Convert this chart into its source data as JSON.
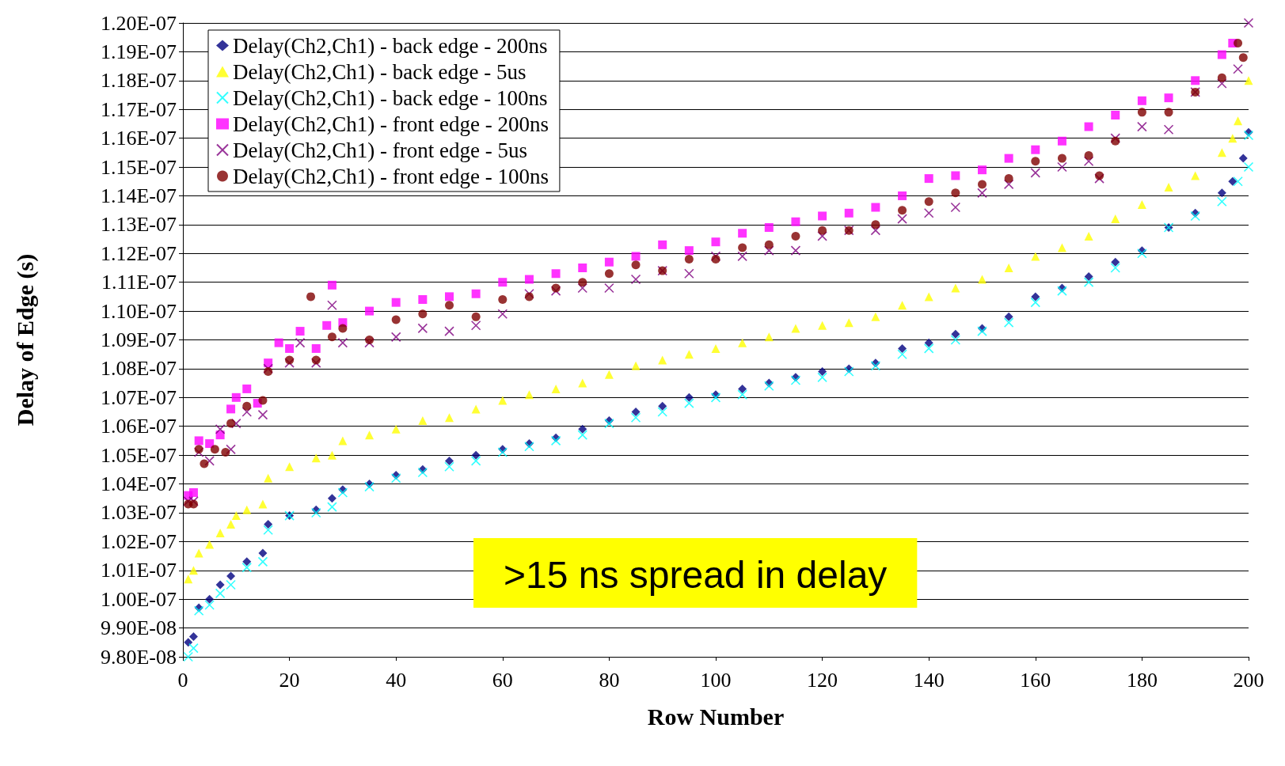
{
  "chart_data": {
    "type": "scatter",
    "xlabel": "Row Number",
    "ylabel": "Delay of Edge (s)",
    "xlim": [
      0,
      200
    ],
    "xticks": [
      0,
      20,
      40,
      60,
      80,
      100,
      120,
      140,
      160,
      180,
      200
    ],
    "ylim": [
      9.8e-08,
      1.2e-07
    ],
    "yticks": [
      {
        "value": 9.8e-08,
        "label": "9.80E-08"
      },
      {
        "value": 9.9e-08,
        "label": "9.90E-08"
      },
      {
        "value": 1e-07,
        "label": "1.00E-07"
      },
      {
        "value": 1.01e-07,
        "label": "1.01E-07"
      },
      {
        "value": 1.02e-07,
        "label": "1.02E-07"
      },
      {
        "value": 1.03e-07,
        "label": "1.03E-07"
      },
      {
        "value": 1.04e-07,
        "label": "1.04E-07"
      },
      {
        "value": 1.05e-07,
        "label": "1.05E-07"
      },
      {
        "value": 1.06e-07,
        "label": "1.06E-07"
      },
      {
        "value": 1.07e-07,
        "label": "1.07E-07"
      },
      {
        "value": 1.08e-07,
        "label": "1.08E-07"
      },
      {
        "value": 1.09e-07,
        "label": "1.09E-07"
      },
      {
        "value": 1.1e-07,
        "label": "1.10E-07"
      },
      {
        "value": 1.11e-07,
        "label": "1.11E-07"
      },
      {
        "value": 1.12e-07,
        "label": "1.12E-07"
      },
      {
        "value": 1.13e-07,
        "label": "1.13E-07"
      },
      {
        "value": 1.14e-07,
        "label": "1.14E-07"
      },
      {
        "value": 1.15e-07,
        "label": "1.15E-07"
      },
      {
        "value": 1.16e-07,
        "label": "1.16E-07"
      },
      {
        "value": 1.17e-07,
        "label": "1.17E-07"
      },
      {
        "value": 1.18e-07,
        "label": "1.18E-07"
      },
      {
        "value": 1.19e-07,
        "label": "1.19E-07"
      },
      {
        "value": 1.2e-07,
        "label": "1.20E-07"
      }
    ],
    "grid": "y",
    "legend": "top left",
    "annotations": [
      ">15 ns spread in delay"
    ],
    "series": [
      {
        "name": "Delay(Ch2,Ch1) - back edge - 200ns",
        "color": "#000080",
        "marker": "diamond",
        "x": [
          1,
          2,
          3,
          5,
          7,
          9,
          12,
          15,
          16,
          20,
          25,
          28,
          30,
          35,
          40,
          45,
          50,
          55,
          60,
          65,
          70,
          75,
          80,
          85,
          90,
          95,
          100,
          105,
          110,
          115,
          120,
          125,
          130,
          135,
          140,
          145,
          150,
          155,
          160,
          165,
          170,
          175,
          180,
          185,
          190,
          195,
          197,
          199,
          200
        ],
        "values": [
          9.85e-08,
          9.87e-08,
          9.97e-08,
          1e-07,
          1.005e-07,
          1.008e-07,
          1.013e-07,
          1.016e-07,
          1.026e-07,
          1.029e-07,
          1.031e-07,
          1.035e-07,
          1.038e-07,
          1.04e-07,
          1.043e-07,
          1.045e-07,
          1.048e-07,
          1.05e-07,
          1.052e-07,
          1.054e-07,
          1.056e-07,
          1.059e-07,
          1.062e-07,
          1.065e-07,
          1.067e-07,
          1.07e-07,
          1.071e-07,
          1.073e-07,
          1.075e-07,
          1.077e-07,
          1.079e-07,
          1.08e-07,
          1.082e-07,
          1.087e-07,
          1.089e-07,
          1.092e-07,
          1.094e-07,
          1.098e-07,
          1.105e-07,
          1.108e-07,
          1.112e-07,
          1.117e-07,
          1.121e-07,
          1.129e-07,
          1.134e-07,
          1.141e-07,
          1.145e-07,
          1.153e-07,
          1.162e-07
        ]
      },
      {
        "name": "Delay(Ch2,Ch1) - back edge - 5us",
        "color": "#ffff00",
        "marker": "triangle",
        "x": [
          1,
          2,
          3,
          5,
          7,
          9,
          10,
          12,
          15,
          16,
          20,
          25,
          28,
          30,
          35,
          40,
          45,
          50,
          55,
          60,
          65,
          70,
          75,
          80,
          85,
          90,
          95,
          100,
          105,
          110,
          115,
          120,
          125,
          130,
          135,
          140,
          145,
          150,
          155,
          160,
          165,
          170,
          175,
          180,
          185,
          190,
          195,
          197,
          198,
          200
        ],
        "values": [
          1.007e-07,
          1.01e-07,
          1.016e-07,
          1.019e-07,
          1.023e-07,
          1.026e-07,
          1.029e-07,
          1.031e-07,
          1.033e-07,
          1.042e-07,
          1.046e-07,
          1.049e-07,
          1.05e-07,
          1.055e-07,
          1.057e-07,
          1.059e-07,
          1.062e-07,
          1.063e-07,
          1.066e-07,
          1.069e-07,
          1.071e-07,
          1.073e-07,
          1.075e-07,
          1.078e-07,
          1.081e-07,
          1.083e-07,
          1.085e-07,
          1.087e-07,
          1.089e-07,
          1.091e-07,
          1.094e-07,
          1.095e-07,
          1.096e-07,
          1.098e-07,
          1.102e-07,
          1.105e-07,
          1.108e-07,
          1.111e-07,
          1.115e-07,
          1.119e-07,
          1.122e-07,
          1.126e-07,
          1.132e-07,
          1.137e-07,
          1.143e-07,
          1.147e-07,
          1.155e-07,
          1.16e-07,
          1.166e-07,
          1.18e-07
        ]
      },
      {
        "name": "Delay(Ch2,Ch1) - back edge - 100ns",
        "color": "#00ffff",
        "marker": "cross",
        "x": [
          1,
          2,
          3,
          5,
          7,
          9,
          12,
          15,
          16,
          20,
          25,
          28,
          30,
          35,
          40,
          45,
          50,
          55,
          60,
          65,
          70,
          75,
          80,
          85,
          90,
          95,
          100,
          105,
          110,
          115,
          120,
          125,
          130,
          135,
          140,
          145,
          150,
          155,
          160,
          165,
          170,
          175,
          180,
          185,
          190,
          195,
          198,
          200,
          200
        ],
        "values": [
          9.8e-08,
          9.83e-08,
          9.96e-08,
          9.98e-08,
          1.002e-07,
          1.005e-07,
          1.011e-07,
          1.013e-07,
          1.024e-07,
          1.029e-07,
          1.03e-07,
          1.032e-07,
          1.037e-07,
          1.039e-07,
          1.042e-07,
          1.044e-07,
          1.046e-07,
          1.048e-07,
          1.051e-07,
          1.053e-07,
          1.055e-07,
          1.057e-07,
          1.061e-07,
          1.063e-07,
          1.065e-07,
          1.068e-07,
          1.07e-07,
          1.071e-07,
          1.074e-07,
          1.076e-07,
          1.077e-07,
          1.079e-07,
          1.081e-07,
          1.085e-07,
          1.087e-07,
          1.09e-07,
          1.093e-07,
          1.096e-07,
          1.103e-07,
          1.107e-07,
          1.11e-07,
          1.115e-07,
          1.12e-07,
          1.129e-07,
          1.133e-07,
          1.138e-07,
          1.145e-07,
          1.15e-07,
          1.161e-07
        ]
      },
      {
        "name": "Delay(Ch2,Ch1) - front edge - 200ns",
        "color": "#ff00ff",
        "marker": "square",
        "x": [
          1,
          2,
          3,
          5,
          7,
          9,
          10,
          12,
          14,
          16,
          18,
          20,
          22,
          25,
          27,
          28,
          30,
          35,
          40,
          45,
          50,
          55,
          60,
          65,
          70,
          75,
          80,
          85,
          90,
          95,
          100,
          105,
          110,
          115,
          120,
          125,
          130,
          135,
          140,
          145,
          150,
          155,
          160,
          165,
          170,
          175,
          180,
          185,
          190,
          195,
          197
        ],
        "values": [
          1.036e-07,
          1.037e-07,
          1.055e-07,
          1.054e-07,
          1.057e-07,
          1.066e-07,
          1.07e-07,
          1.073e-07,
          1.068e-07,
          1.082e-07,
          1.089e-07,
          1.087e-07,
          1.093e-07,
          1.087e-07,
          1.095e-07,
          1.109e-07,
          1.096e-07,
          1.1e-07,
          1.103e-07,
          1.104e-07,
          1.105e-07,
          1.106e-07,
          1.11e-07,
          1.111e-07,
          1.113e-07,
          1.115e-07,
          1.117e-07,
          1.119e-07,
          1.123e-07,
          1.121e-07,
          1.124e-07,
          1.127e-07,
          1.129e-07,
          1.131e-07,
          1.133e-07,
          1.134e-07,
          1.136e-07,
          1.14e-07,
          1.146e-07,
          1.147e-07,
          1.149e-07,
          1.153e-07,
          1.156e-07,
          1.159e-07,
          1.164e-07,
          1.168e-07,
          1.173e-07,
          1.174e-07,
          1.18e-07,
          1.189e-07,
          1.193e-07
        ]
      },
      {
        "name": "Delay(Ch2,Ch1) - front edge - 5us",
        "color": "#800080",
        "marker": "cross",
        "x": [
          1,
          2,
          3,
          5,
          7,
          9,
          10,
          12,
          15,
          16,
          20,
          22,
          25,
          28,
          30,
          35,
          40,
          45,
          50,
          55,
          60,
          65,
          70,
          75,
          80,
          85,
          90,
          95,
          100,
          105,
          110,
          115,
          120,
          125,
          130,
          135,
          140,
          145,
          150,
          155,
          160,
          165,
          170,
          172,
          175,
          180,
          185,
          190,
          195,
          198,
          200
        ],
        "values": [
          1.034e-07,
          1.034e-07,
          1.051e-07,
          1.048e-07,
          1.059e-07,
          1.052e-07,
          1.061e-07,
          1.065e-07,
          1.064e-07,
          1.08e-07,
          1.082e-07,
          1.089e-07,
          1.082e-07,
          1.102e-07,
          1.089e-07,
          1.089e-07,
          1.091e-07,
          1.094e-07,
          1.093e-07,
          1.095e-07,
          1.099e-07,
          1.106e-07,
          1.107e-07,
          1.108e-07,
          1.108e-07,
          1.111e-07,
          1.114e-07,
          1.113e-07,
          1.119e-07,
          1.119e-07,
          1.121e-07,
          1.121e-07,
          1.126e-07,
          1.128e-07,
          1.128e-07,
          1.132e-07,
          1.134e-07,
          1.136e-07,
          1.141e-07,
          1.144e-07,
          1.148e-07,
          1.15e-07,
          1.152e-07,
          1.146e-07,
          1.16e-07,
          1.164e-07,
          1.163e-07,
          1.176e-07,
          1.179e-07,
          1.184e-07,
          1.2e-07
        ]
      },
      {
        "name": "Delay(Ch2,Ch1) - front edge - 100ns",
        "color": "#800000",
        "marker": "circle",
        "x": [
          1,
          2,
          3,
          4,
          6,
          8,
          9,
          12,
          15,
          16,
          20,
          24,
          25,
          28,
          30,
          35,
          40,
          45,
          50,
          55,
          60,
          65,
          70,
          75,
          80,
          85,
          90,
          95,
          100,
          105,
          110,
          115,
          120,
          125,
          130,
          135,
          140,
          145,
          150,
          155,
          160,
          165,
          170,
          172,
          175,
          180,
          185,
          190,
          195,
          198,
          199
        ],
        "values": [
          1.033e-07,
          1.033e-07,
          1.052e-07,
          1.047e-07,
          1.052e-07,
          1.051e-07,
          1.061e-07,
          1.067e-07,
          1.069e-07,
          1.079e-07,
          1.083e-07,
          1.105e-07,
          1.083e-07,
          1.091e-07,
          1.094e-07,
          1.09e-07,
          1.097e-07,
          1.099e-07,
          1.102e-07,
          1.098e-07,
          1.104e-07,
          1.105e-07,
          1.108e-07,
          1.11e-07,
          1.113e-07,
          1.116e-07,
          1.114e-07,
          1.118e-07,
          1.118e-07,
          1.122e-07,
          1.123e-07,
          1.126e-07,
          1.128e-07,
          1.128e-07,
          1.13e-07,
          1.135e-07,
          1.138e-07,
          1.141e-07,
          1.144e-07,
          1.146e-07,
          1.152e-07,
          1.153e-07,
          1.154e-07,
          1.147e-07,
          1.159e-07,
          1.169e-07,
          1.169e-07,
          1.176e-07,
          1.181e-07,
          1.193e-07,
          1.188e-07
        ]
      }
    ]
  }
}
